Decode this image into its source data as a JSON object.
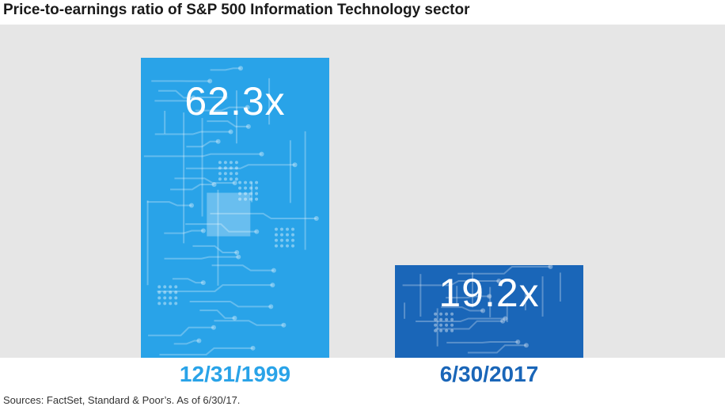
{
  "chart_data": {
    "type": "bar",
    "title": "Price-to-earnings ratio of S&P 500 Information Technology sector",
    "categories": [
      "12/31/1999",
      "6/30/2017"
    ],
    "values": [
      62.3,
      19.2
    ],
    "value_labels": [
      "62.3x",
      "19.2x"
    ],
    "xlabel": "",
    "ylabel": "",
    "ylim": [
      0,
      70
    ],
    "grid": false,
    "bar_colors": [
      "#29a3e8",
      "#1a66b8"
    ],
    "label_colors": [
      "#29a3e8",
      "#1a66b8"
    ],
    "background_color": "#e6e6e6",
    "source": "Sources: FactSet, Standard & Poor’s. As of 6/30/17."
  }
}
